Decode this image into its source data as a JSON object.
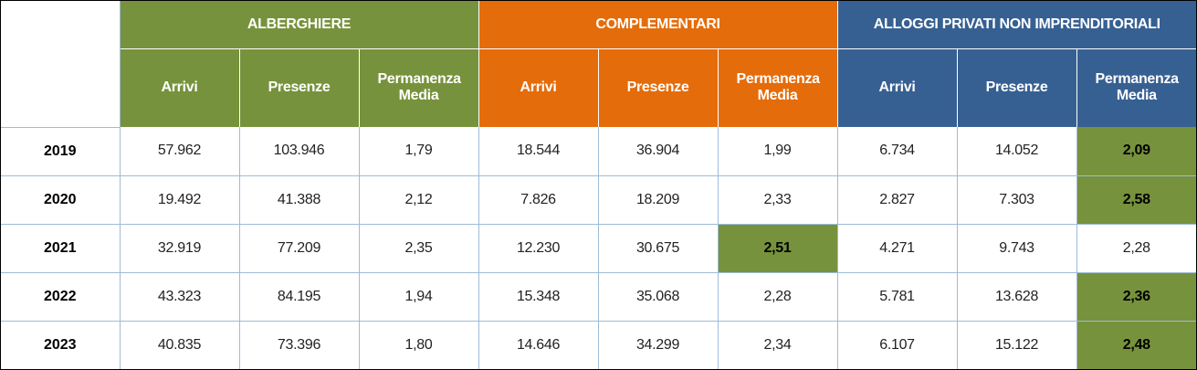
{
  "groups": [
    {
      "label": "ALBERGHIERE",
      "color": "#77923c"
    },
    {
      "label": "COMPLEMENTARI",
      "color": "#e46c0a"
    },
    {
      "label": "ALLOGGI PRIVATI NON IMPRENDITORIALI",
      "color": "#376092"
    }
  ],
  "subheaders": [
    "Arrivi",
    "Presenze",
    "Permanenza Media"
  ],
  "highlight_color": "#77923c",
  "rows": [
    {
      "year": "2019",
      "values": [
        "57.962",
        "103.946",
        "1,79",
        "18.544",
        "36.904",
        "1,99",
        "6.734",
        "14.052",
        "2,09"
      ],
      "highlight": [
        8
      ]
    },
    {
      "year": "2020",
      "values": [
        "19.492",
        "41.388",
        "2,12",
        "7.826",
        "18.209",
        "2,33",
        "2.827",
        "7.303",
        "2,58"
      ],
      "highlight": [
        8
      ]
    },
    {
      "year": "2021",
      "values": [
        "32.919",
        "77.209",
        "2,35",
        "12.230",
        "30.675",
        "2,51",
        "4.271",
        "9.743",
        "2,28"
      ],
      "highlight": [
        5
      ]
    },
    {
      "year": "2022",
      "values": [
        "43.323",
        "84.195",
        "1,94",
        "15.348",
        "35.068",
        "2,28",
        "5.781",
        "13.628",
        "2,36"
      ],
      "highlight": [
        8
      ]
    },
    {
      "year": "2023",
      "values": [
        "40.835",
        "73.396",
        "1,80",
        "14.646",
        "34.299",
        "2,34",
        "6.107",
        "15.122",
        "2,48"
      ],
      "highlight": [
        8
      ]
    }
  ]
}
